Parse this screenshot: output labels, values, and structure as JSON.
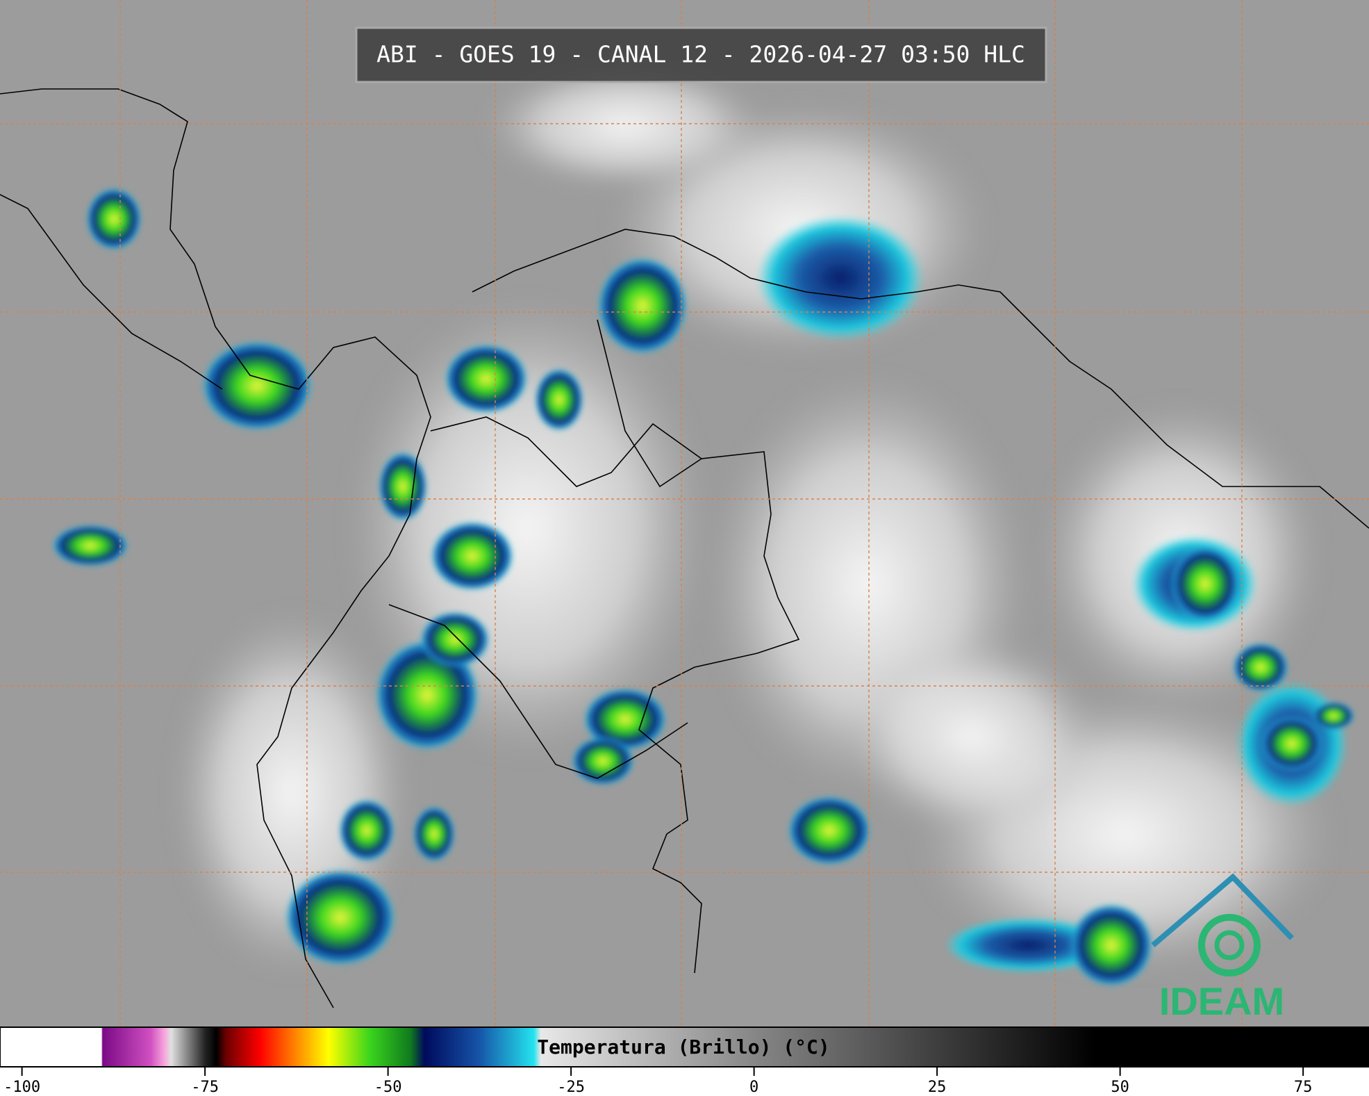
{
  "header": {
    "title": "ABI - GOES 19 - CANAL 12 - 2026-04-27 03:50 HLC"
  },
  "colorbar": {
    "label": "Temperatura (Brillo) (°C)",
    "range": [
      -103,
      84
    ],
    "ticks": [
      -100,
      -75,
      -50,
      -25,
      0,
      25,
      50,
      75
    ]
  },
  "logo": {
    "text": "IDEAM"
  }
}
